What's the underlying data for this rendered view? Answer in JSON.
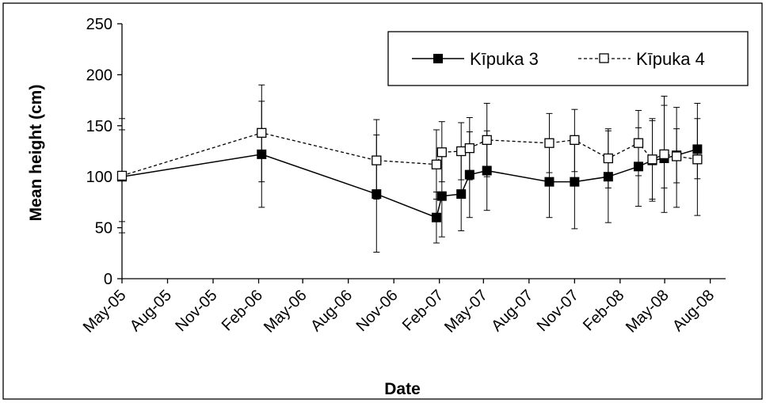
{
  "chart_data": {
    "type": "line",
    "xlabel": "Date",
    "ylabel": "Mean height (cm)",
    "ylim": [
      0,
      250
    ],
    "yticks": [
      0,
      50,
      100,
      150,
      200,
      250
    ],
    "xlim": [
      "2005-05-01",
      "2008-09-01"
    ],
    "xticks": [
      {
        "date": "2005-05-01",
        "label": "May-05"
      },
      {
        "date": "2005-08-01",
        "label": "Aug-05"
      },
      {
        "date": "2005-11-01",
        "label": "Nov-05"
      },
      {
        "date": "2006-02-01",
        "label": "Feb-06"
      },
      {
        "date": "2006-05-01",
        "label": "May-06"
      },
      {
        "date": "2006-08-01",
        "label": "Aug-06"
      },
      {
        "date": "2006-11-01",
        "label": "Nov-06"
      },
      {
        "date": "2007-02-01",
        "label": "Feb-07"
      },
      {
        "date": "2007-05-01",
        "label": "May-07"
      },
      {
        "date": "2007-08-01",
        "label": "Aug-07"
      },
      {
        "date": "2007-11-01",
        "label": "Nov-07"
      },
      {
        "date": "2008-02-01",
        "label": "Feb-08"
      },
      {
        "date": "2008-05-01",
        "label": "May-08"
      },
      {
        "date": "2008-08-01",
        "label": "Aug-08"
      }
    ],
    "grid": false,
    "legend": "top-right",
    "series": [
      {
        "name": "Kīpuka 3",
        "style": "solid",
        "marker": "filled-square",
        "color": "#000000",
        "points": [
          {
            "x": "2005-05-01",
            "y": 100,
            "lo": 45,
            "hi": 157
          },
          {
            "x": "2006-02-07",
            "y": 122,
            "lo": 70,
            "hi": 174
          },
          {
            "x": "2006-09-27",
            "y": 83,
            "lo": 26,
            "hi": 141
          },
          {
            "x": "2007-01-26",
            "y": 60,
            "lo": 35,
            "hi": 85
          },
          {
            "x": "2007-02-06",
            "y": 81,
            "lo": 41,
            "hi": 121
          },
          {
            "x": "2007-03-17",
            "y": 83,
            "lo": 47,
            "hi": 121
          },
          {
            "x": "2007-04-03",
            "y": 102,
            "lo": 60,
            "hi": 144
          },
          {
            "x": "2007-05-08",
            "y": 106,
            "lo": 67,
            "hi": 145
          },
          {
            "x": "2007-09-11",
            "y": 95,
            "lo": 60,
            "hi": 130
          },
          {
            "x": "2007-11-01",
            "y": 95,
            "lo": 49,
            "hi": 140
          },
          {
            "x": "2008-01-08",
            "y": 100,
            "lo": 55,
            "hi": 145
          },
          {
            "x": "2008-03-09",
            "y": 110,
            "lo": 71,
            "hi": 148
          },
          {
            "x": "2008-04-06",
            "y": 116,
            "lo": 78,
            "hi": 155
          },
          {
            "x": "2008-04-30",
            "y": 118,
            "lo": 65,
            "hi": 170
          },
          {
            "x": "2008-05-25",
            "y": 121,
            "lo": 70,
            "hi": 168
          },
          {
            "x": "2008-07-06",
            "y": 127,
            "lo": 98,
            "hi": 157
          }
        ]
      },
      {
        "name": "Kīpuka 4",
        "style": "dashed",
        "marker": "open-square",
        "color": "#000000",
        "points": [
          {
            "x": "2005-05-01",
            "y": 101,
            "lo": 56,
            "hi": 146
          },
          {
            "x": "2006-02-07",
            "y": 143,
            "lo": 95,
            "hi": 190
          },
          {
            "x": "2006-09-27",
            "y": 116,
            "lo": 78,
            "hi": 156
          },
          {
            "x": "2007-01-26",
            "y": 112,
            "lo": 78,
            "hi": 146
          },
          {
            "x": "2007-02-06",
            "y": 124,
            "lo": 95,
            "hi": 154
          },
          {
            "x": "2007-03-17",
            "y": 125,
            "lo": 97,
            "hi": 153
          },
          {
            "x": "2007-04-03",
            "y": 128,
            "lo": 97,
            "hi": 158
          },
          {
            "x": "2007-05-08",
            "y": 136,
            "lo": 100,
            "hi": 172
          },
          {
            "x": "2007-09-11",
            "y": 133,
            "lo": 104,
            "hi": 162
          },
          {
            "x": "2007-11-01",
            "y": 136,
            "lo": 105,
            "hi": 166
          },
          {
            "x": "2008-01-08",
            "y": 118,
            "lo": 89,
            "hi": 147
          },
          {
            "x": "2008-03-09",
            "y": 133,
            "lo": 101,
            "hi": 165
          },
          {
            "x": "2008-04-06",
            "y": 117,
            "lo": 76,
            "hi": 157
          },
          {
            "x": "2008-04-30",
            "y": 122,
            "lo": 89,
            "hi": 179
          },
          {
            "x": "2008-05-25",
            "y": 120,
            "lo": 94,
            "hi": 147
          },
          {
            "x": "2008-07-06",
            "y": 117,
            "lo": 62,
            "hi": 172
          }
        ]
      }
    ]
  }
}
